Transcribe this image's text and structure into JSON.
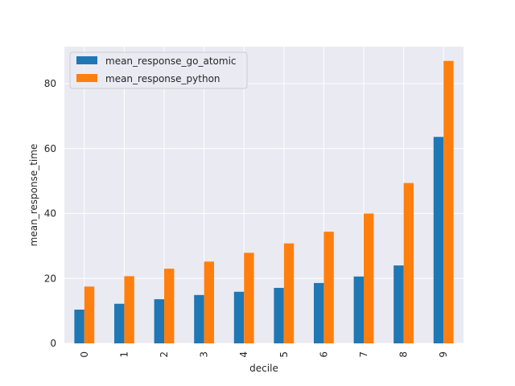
{
  "chart_data": {
    "type": "bar",
    "title": "",
    "xlabel": "decile",
    "ylabel": "mean_response_time",
    "categories": [
      "0",
      "1",
      "2",
      "3",
      "4",
      "5",
      "6",
      "7",
      "8",
      "9"
    ],
    "series": [
      {
        "name": "mean_response_go_atomic",
        "color": "#1f77b4",
        "values": [
          10.4,
          12.2,
          13.6,
          14.9,
          15.9,
          17.1,
          18.6,
          20.6,
          24.0,
          63.6
        ]
      },
      {
        "name": "mean_response_python",
        "color": "#ff7f0e",
        "values": [
          17.5,
          20.7,
          23.0,
          25.2,
          27.9,
          30.8,
          34.4,
          40.0,
          49.4,
          87.0
        ]
      }
    ],
    "ylim": [
      0,
      91.4
    ],
    "yticks": [
      0,
      20,
      40,
      60,
      80
    ],
    "grid": true,
    "legend_position": "top-left",
    "background": "#eaeaf2",
    "grid_color": "#ffffff"
  }
}
